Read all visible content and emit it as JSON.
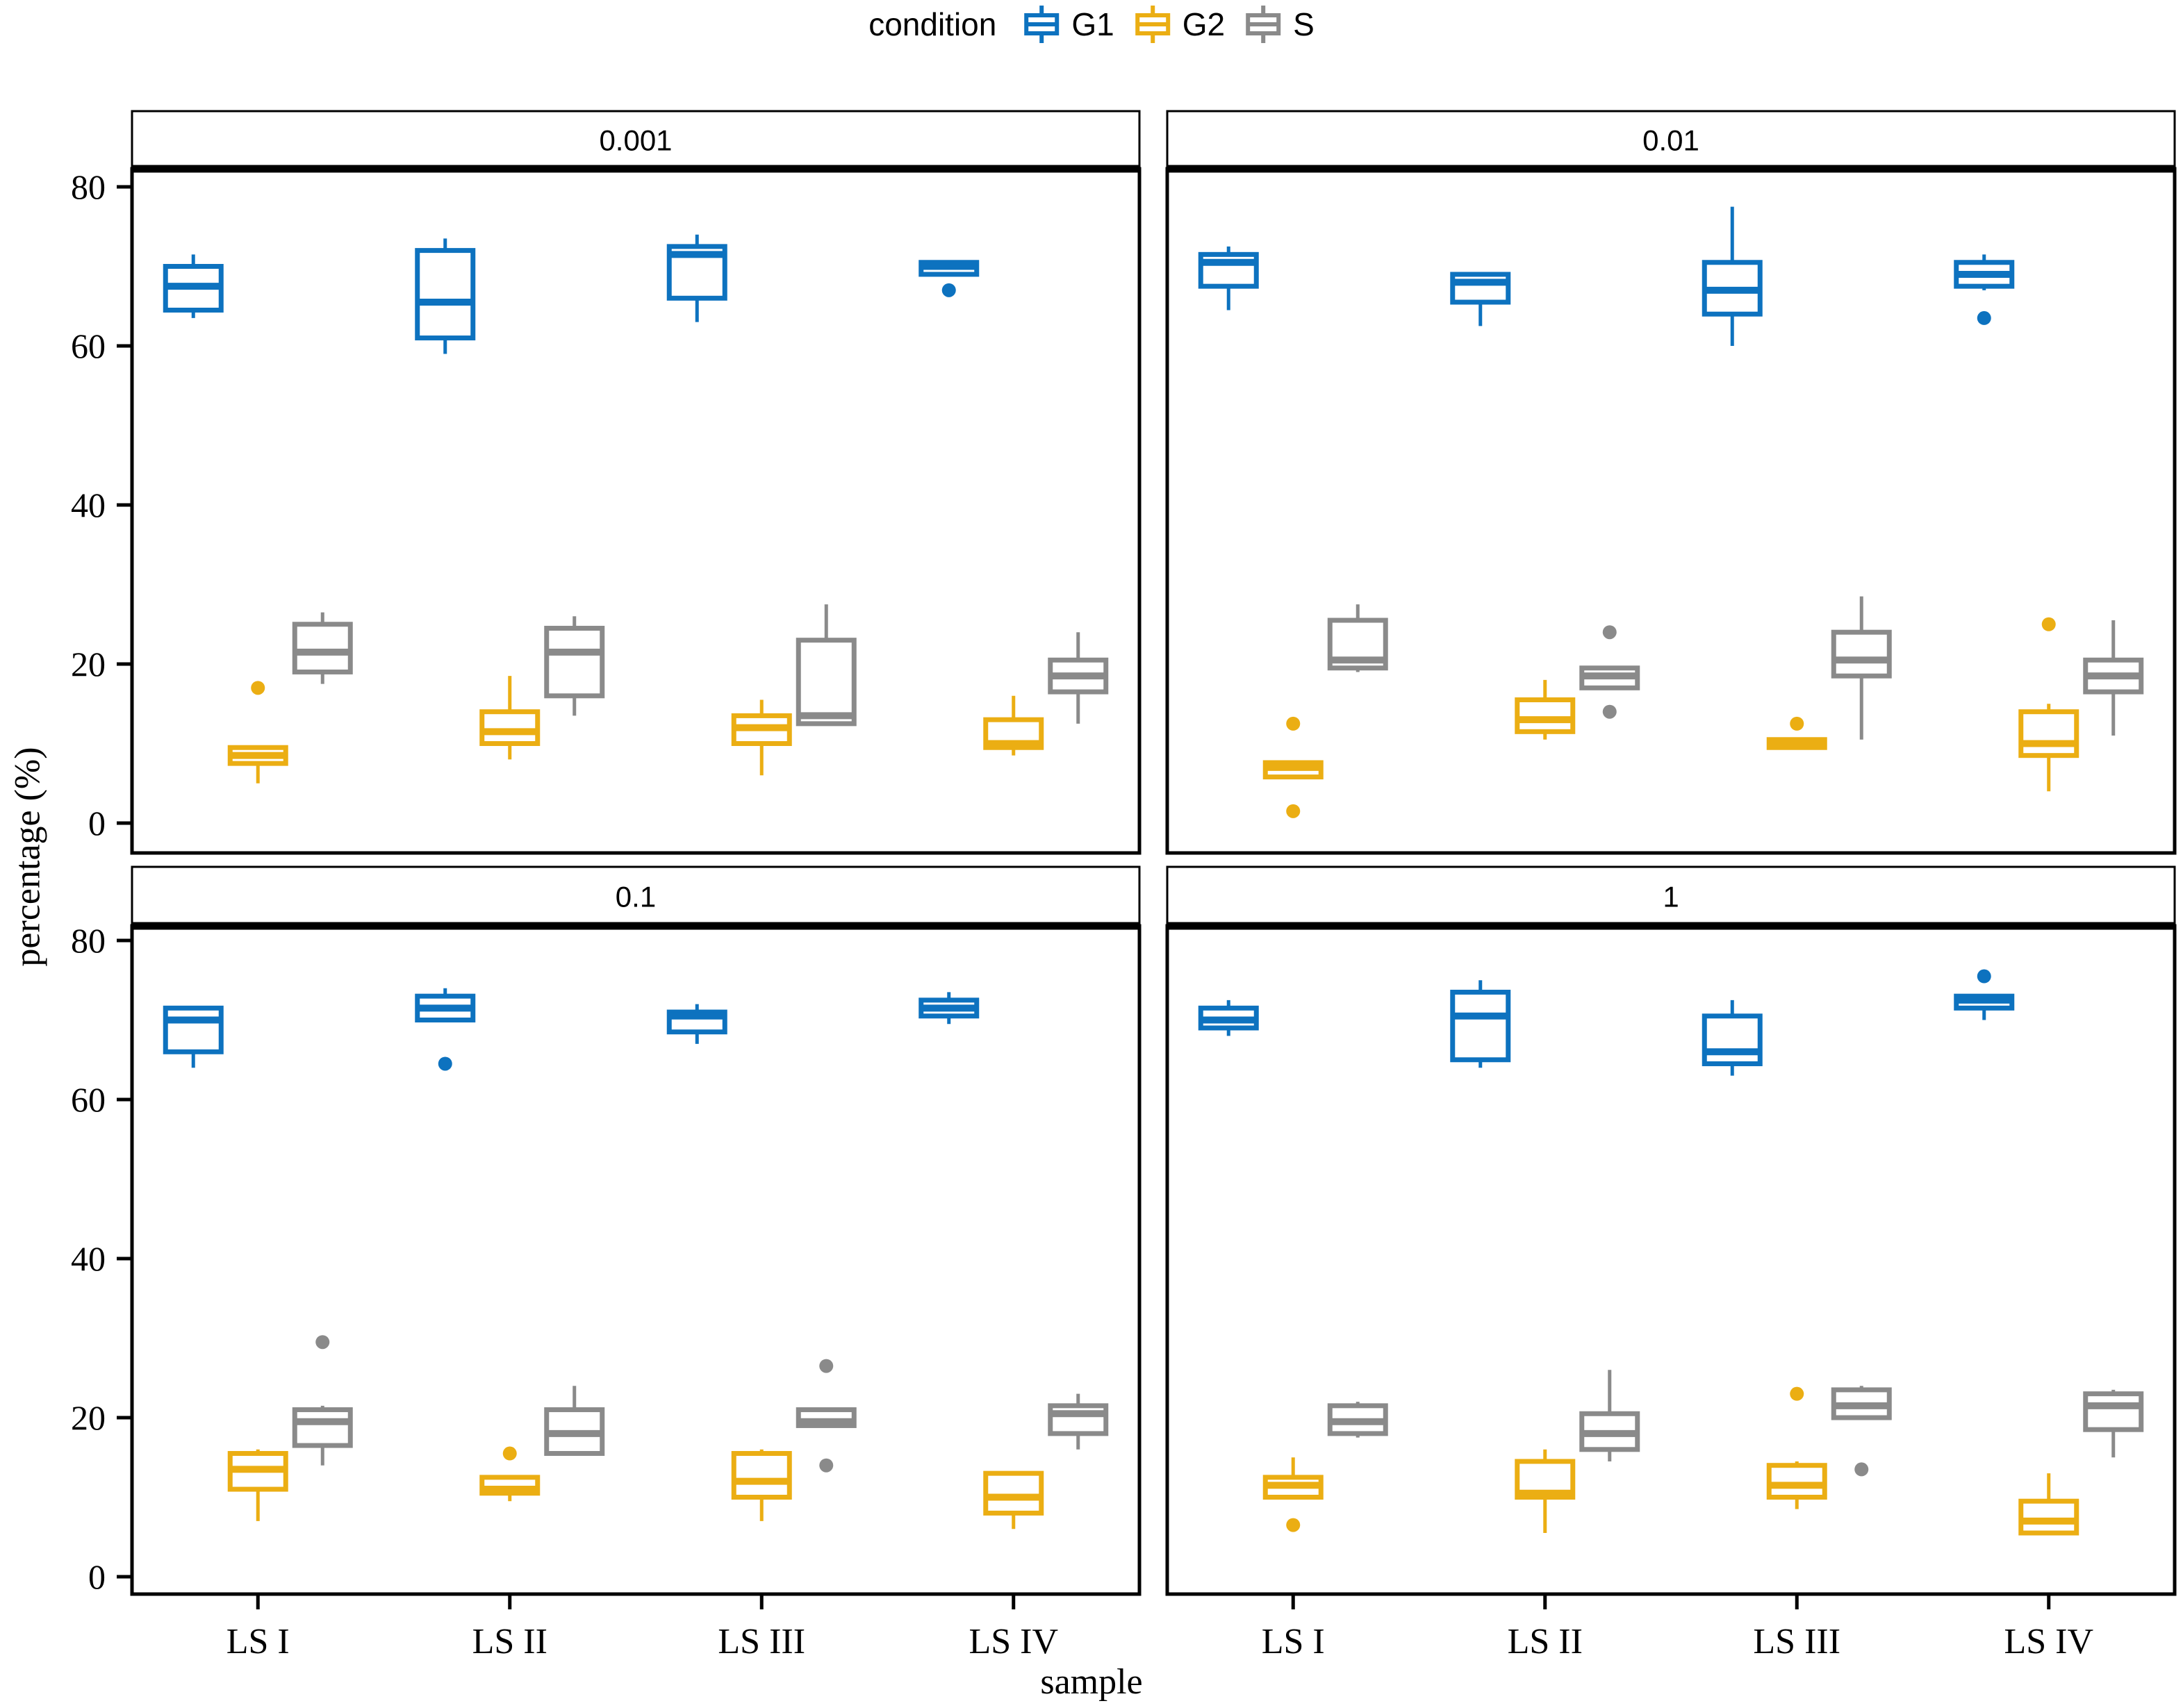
{
  "legend": {
    "title": "condition",
    "items": [
      {
        "series": "G1",
        "label": "G1"
      },
      {
        "series": "G2",
        "label": "G2"
      },
      {
        "series": "S",
        "label": "S"
      }
    ]
  },
  "chart_data": {
    "type": "boxplot",
    "title": "",
    "xlabel": "sample",
    "ylabel": "percentage (%)",
    "categories": [
      "LS I",
      "LS II",
      "LS III",
      "LS IV"
    ],
    "series": [
      "G1",
      "G2",
      "S"
    ],
    "colors": {
      "G1": "#0D72BF",
      "G2": "#EBAE13",
      "S": "#8A8A8A"
    },
    "y_ticks": [
      0,
      20,
      40,
      60,
      80
    ],
    "ylim": [
      -4,
      82
    ],
    "legend_position": "top",
    "grid": false,
    "panels": [
      {
        "label": "0.001",
        "boxes": {
          "LS I": {
            "G1": {
              "w": [
                63.5,
                71.5
              ],
              "box": [
                64.5,
                67.5,
                70
              ],
              "out": []
            },
            "G2": {
              "w": [
                5,
                9.5
              ],
              "box": [
                7.5,
                8.5,
                9.5
              ],
              "out": [
                17
              ]
            },
            "S": {
              "w": [
                17.5,
                26.5
              ],
              "box": [
                19,
                21.5,
                25
              ],
              "out": []
            }
          },
          "LS II": {
            "G1": {
              "w": [
                59,
                73.5
              ],
              "box": [
                61,
                65.5,
                72
              ],
              "out": []
            },
            "G2": {
              "w": [
                8,
                18.5
              ],
              "box": [
                10,
                11.5,
                14
              ],
              "out": []
            },
            "S": {
              "w": [
                13.5,
                26
              ],
              "box": [
                16,
                21.5,
                24.5
              ],
              "out": []
            }
          },
          "LS III": {
            "G1": {
              "w": [
                63,
                74
              ],
              "box": [
                66,
                71.5,
                72.5
              ],
              "out": []
            },
            "G2": {
              "w": [
                6,
                15.5
              ],
              "box": [
                10,
                12,
                13.5
              ],
              "out": []
            },
            "S": {
              "w": [
                12.5,
                27.5
              ],
              "box": [
                12.5,
                13.5,
                23
              ],
              "out": []
            }
          },
          "LS IV": {
            "G1": {
              "w": [
                69,
                70.5
              ],
              "box": [
                69,
                70,
                70.5
              ],
              "out": [
                67
              ]
            },
            "G2": {
              "w": [
                8.5,
                16
              ],
              "box": [
                9.5,
                10,
                13
              ],
              "out": []
            },
            "S": {
              "w": [
                12.5,
                24
              ],
              "box": [
                16.5,
                18.5,
                20.5
              ],
              "out": []
            }
          }
        }
      },
      {
        "label": "0.01",
        "boxes": {
          "LS I": {
            "G1": {
              "w": [
                64.5,
                72.5
              ],
              "box": [
                67.5,
                70.5,
                71.5
              ],
              "out": []
            },
            "G2": {
              "w": [
                5.8,
                7.6
              ],
              "box": [
                5.8,
                7,
                7.6
              ],
              "out": [
                12.5,
                1.5
              ]
            },
            "S": {
              "w": [
                19,
                27.5
              ],
              "box": [
                19.5,
                20.5,
                25.5
              ],
              "out": []
            }
          },
          "LS II": {
            "G1": {
              "w": [
                62.5,
                69
              ],
              "box": [
                65.5,
                68,
                69
              ],
              "out": []
            },
            "G2": {
              "w": [
                10.5,
                18
              ],
              "box": [
                11.5,
                13,
                15.5
              ],
              "out": []
            },
            "S": {
              "w": [
                17,
                19.5
              ],
              "box": [
                17,
                18.5,
                19.5
              ],
              "out": [
                24,
                14
              ]
            }
          },
          "LS III": {
            "G1": {
              "w": [
                60,
                77.5
              ],
              "box": [
                64,
                67,
                70.5
              ],
              "out": []
            },
            "G2": {
              "w": [
                9.5,
                10.5
              ],
              "box": [
                9.5,
                10,
                10.5
              ],
              "out": [
                12.5
              ]
            },
            "S": {
              "w": [
                10.5,
                28.5
              ],
              "box": [
                18.5,
                20.5,
                24
              ],
              "out": []
            }
          },
          "LS IV": {
            "G1": {
              "w": [
                67,
                71.5
              ],
              "box": [
                67.5,
                69,
                70.5
              ],
              "out": [
                63.5
              ]
            },
            "G2": {
              "w": [
                4,
                15
              ],
              "box": [
                8.5,
                10,
                14
              ],
              "out": [
                25
              ]
            },
            "S": {
              "w": [
                11,
                25.5
              ],
              "box": [
                16.5,
                18.5,
                20.5
              ],
              "out": []
            }
          }
        }
      },
      {
        "label": "0.1",
        "boxes": {
          "LS I": {
            "G1": {
              "w": [
                64,
                71.5
              ],
              "box": [
                66,
                70,
                71.5
              ],
              "out": []
            },
            "G2": {
              "w": [
                7,
                16
              ],
              "box": [
                11,
                13.5,
                15.5
              ],
              "out": []
            },
            "S": {
              "w": [
                14,
                21.5
              ],
              "box": [
                16.5,
                19.5,
                21
              ],
              "out": [
                29.5
              ]
            }
          },
          "LS II": {
            "G1": {
              "w": [
                70,
                74
              ],
              "box": [
                70,
                71.5,
                73
              ],
              "out": [
                64.5
              ]
            },
            "G2": {
              "w": [
                9.5,
                12.5
              ],
              "box": [
                10.5,
                11,
                12.5
              ],
              "out": [
                15.5
              ]
            },
            "S": {
              "w": [
                15.5,
                24
              ],
              "box": [
                15.5,
                18,
                21
              ],
              "out": []
            }
          },
          "LS III": {
            "G1": {
              "w": [
                67,
                72
              ],
              "box": [
                68.5,
                70.5,
                71
              ],
              "out": []
            },
            "G2": {
              "w": [
                7,
                16
              ],
              "box": [
                10,
                12,
                15.5
              ],
              "out": []
            },
            "S": {
              "w": [
                19,
                21
              ],
              "box": [
                19,
                19.5,
                21
              ],
              "out": [
                26.5,
                14
              ]
            }
          },
          "LS IV": {
            "G1": {
              "w": [
                69.5,
                73.5
              ],
              "box": [
                70.5,
                71.5,
                72.5
              ],
              "out": []
            },
            "G2": {
              "w": [
                6,
                13
              ],
              "box": [
                8,
                10,
                13
              ],
              "out": []
            },
            "S": {
              "w": [
                16,
                23
              ],
              "box": [
                18,
                20.5,
                21.5
              ],
              "out": []
            }
          }
        }
      },
      {
        "label": "1",
        "boxes": {
          "LS I": {
            "G1": {
              "w": [
                68,
                72.5
              ],
              "box": [
                69,
                70,
                71.5
              ],
              "out": []
            },
            "G2": {
              "w": [
                10,
                15
              ],
              "box": [
                10,
                11.5,
                12.5
              ],
              "out": [
                6.5
              ]
            },
            "S": {
              "w": [
                17.5,
                22
              ],
              "box": [
                18,
                19.5,
                21.5
              ],
              "out": []
            }
          },
          "LS II": {
            "G1": {
              "w": [
                64,
                75
              ],
              "box": [
                65,
                70.5,
                73.5
              ],
              "out": []
            },
            "G2": {
              "w": [
                5.5,
                16
              ],
              "box": [
                10,
                10.5,
                14.5
              ],
              "out": []
            },
            "S": {
              "w": [
                14.5,
                26
              ],
              "box": [
                16,
                18,
                20.5
              ],
              "out": []
            }
          },
          "LS III": {
            "G1": {
              "w": [
                63,
                72.5
              ],
              "box": [
                64.5,
                66,
                70.5
              ],
              "out": []
            },
            "G2": {
              "w": [
                8.5,
                14.5
              ],
              "box": [
                10,
                11.5,
                14
              ],
              "out": [
                23
              ]
            },
            "S": {
              "w": [
                20,
                24
              ],
              "box": [
                20,
                21.5,
                23.5
              ],
              "out": [
                13.5
              ]
            }
          },
          "LS IV": {
            "G1": {
              "w": [
                70,
                73
              ],
              "box": [
                71.5,
                72.5,
                73
              ],
              "out": [
                75.5
              ]
            },
            "G2": {
              "w": [
                5.5,
                13
              ],
              "box": [
                5.5,
                7,
                9.5
              ],
              "out": []
            },
            "S": {
              "w": [
                15,
                23.5
              ],
              "box": [
                18.5,
                21.5,
                23
              ],
              "out": []
            }
          }
        }
      }
    ]
  }
}
